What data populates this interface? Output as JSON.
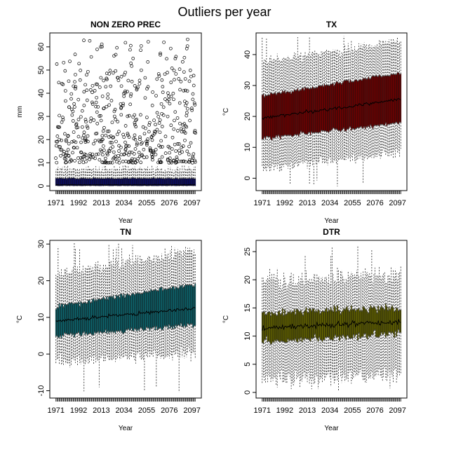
{
  "title": "Outliers per year",
  "colors": {
    "NON ZERO PREC": "#0d0d6b",
    "TX": "#7a0000",
    "TN": "#0e6b74",
    "DTR": "#6b6b00"
  },
  "chart_data": [
    {
      "type": "boxplot",
      "title": "NON ZERO PREC",
      "xlabel": "Year",
      "ylabel": "mm",
      "x_range": [
        1971,
        2100
      ],
      "x_ticks": [
        "1971",
        "1992",
        "2013",
        "2034",
        "2055",
        "2076",
        "2097"
      ],
      "ylim": [
        -2,
        66
      ],
      "y_ticks": [
        0,
        10,
        20,
        30,
        40,
        50,
        60
      ],
      "series": [
        {
          "name": "NON ZERO PREC",
          "color": "#0d0d6b",
          "median": {
            "start": 0.5,
            "end": 0.5
          },
          "q1": {
            "start": 0.1,
            "end": 0.1
          },
          "q3": {
            "start": 3.2,
            "end": 3.2
          },
          "whisker_low": {
            "start": 0,
            "end": 0
          },
          "whisker_high": {
            "start": 7.5,
            "end": 7.5
          },
          "outliers_range": [
            8,
            64
          ]
        }
      ]
    },
    {
      "type": "boxplot",
      "title": "TX",
      "xlabel": "Year",
      "ylabel": "°C",
      "x_range": [
        1971,
        2100
      ],
      "x_ticks": [
        "1971",
        "1992",
        "2013",
        "2034",
        "2055",
        "2076",
        "2097"
      ],
      "ylim": [
        -4,
        47
      ],
      "y_ticks": [
        0,
        10,
        20,
        30,
        40
      ],
      "series": [
        {
          "name": "TX",
          "color": "#7a0000",
          "median": {
            "start": 19.5,
            "end": 25.5
          },
          "q1": {
            "start": 13,
            "end": 18
          },
          "q3": {
            "start": 26.5,
            "end": 34
          },
          "whisker_low": {
            "start": 3,
            "end": 8
          },
          "whisker_high": {
            "start": 38,
            "end": 44.5
          },
          "min_low": -3,
          "max_high": 46.5
        }
      ]
    },
    {
      "type": "boxplot",
      "title": "TN",
      "xlabel": "Year",
      "ylabel": "°C",
      "x_range": [
        1971,
        2100
      ],
      "x_ticks": [
        "1971",
        "1992",
        "2013",
        "2034",
        "2055",
        "2076",
        "2097"
      ],
      "ylim": [
        -12,
        31
      ],
      "y_ticks": [
        -10,
        0,
        10,
        20,
        30
      ],
      "series": [
        {
          "name": "TN",
          "color": "#0e6b74",
          "median": {
            "start": 9,
            "end": 12.5
          },
          "q1": {
            "start": 5,
            "end": 8
          },
          "q3": {
            "start": 13,
            "end": 19
          },
          "whisker_low": {
            "start": -2.5,
            "end": 0
          },
          "whisker_high": {
            "start": 22,
            "end": 28.5
          },
          "min_low": -11,
          "max_high": 30.5
        }
      ]
    },
    {
      "type": "boxplot",
      "title": "DTR",
      "xlabel": "Year",
      "ylabel": "°C",
      "x_range": [
        1971,
        2100
      ],
      "x_ticks": [
        "1971",
        "1992",
        "2013",
        "2034",
        "2055",
        "2076",
        "2097"
      ],
      "ylim": [
        -1,
        27
      ],
      "y_ticks": [
        0,
        5,
        10,
        15,
        20,
        25
      ],
      "series": [
        {
          "name": "DTR",
          "color": "#6b6b00",
          "median": {
            "start": 11.5,
            "end": 12.5
          },
          "q1": {
            "start": 9,
            "end": 10.5
          },
          "q3": {
            "start": 14,
            "end": 15
          },
          "whisker_low": {
            "start": 2,
            "end": 3
          },
          "whisker_high": {
            "start": 20,
            "end": 21
          },
          "min_low": 0.5,
          "max_high": 26
        }
      ]
    }
  ]
}
